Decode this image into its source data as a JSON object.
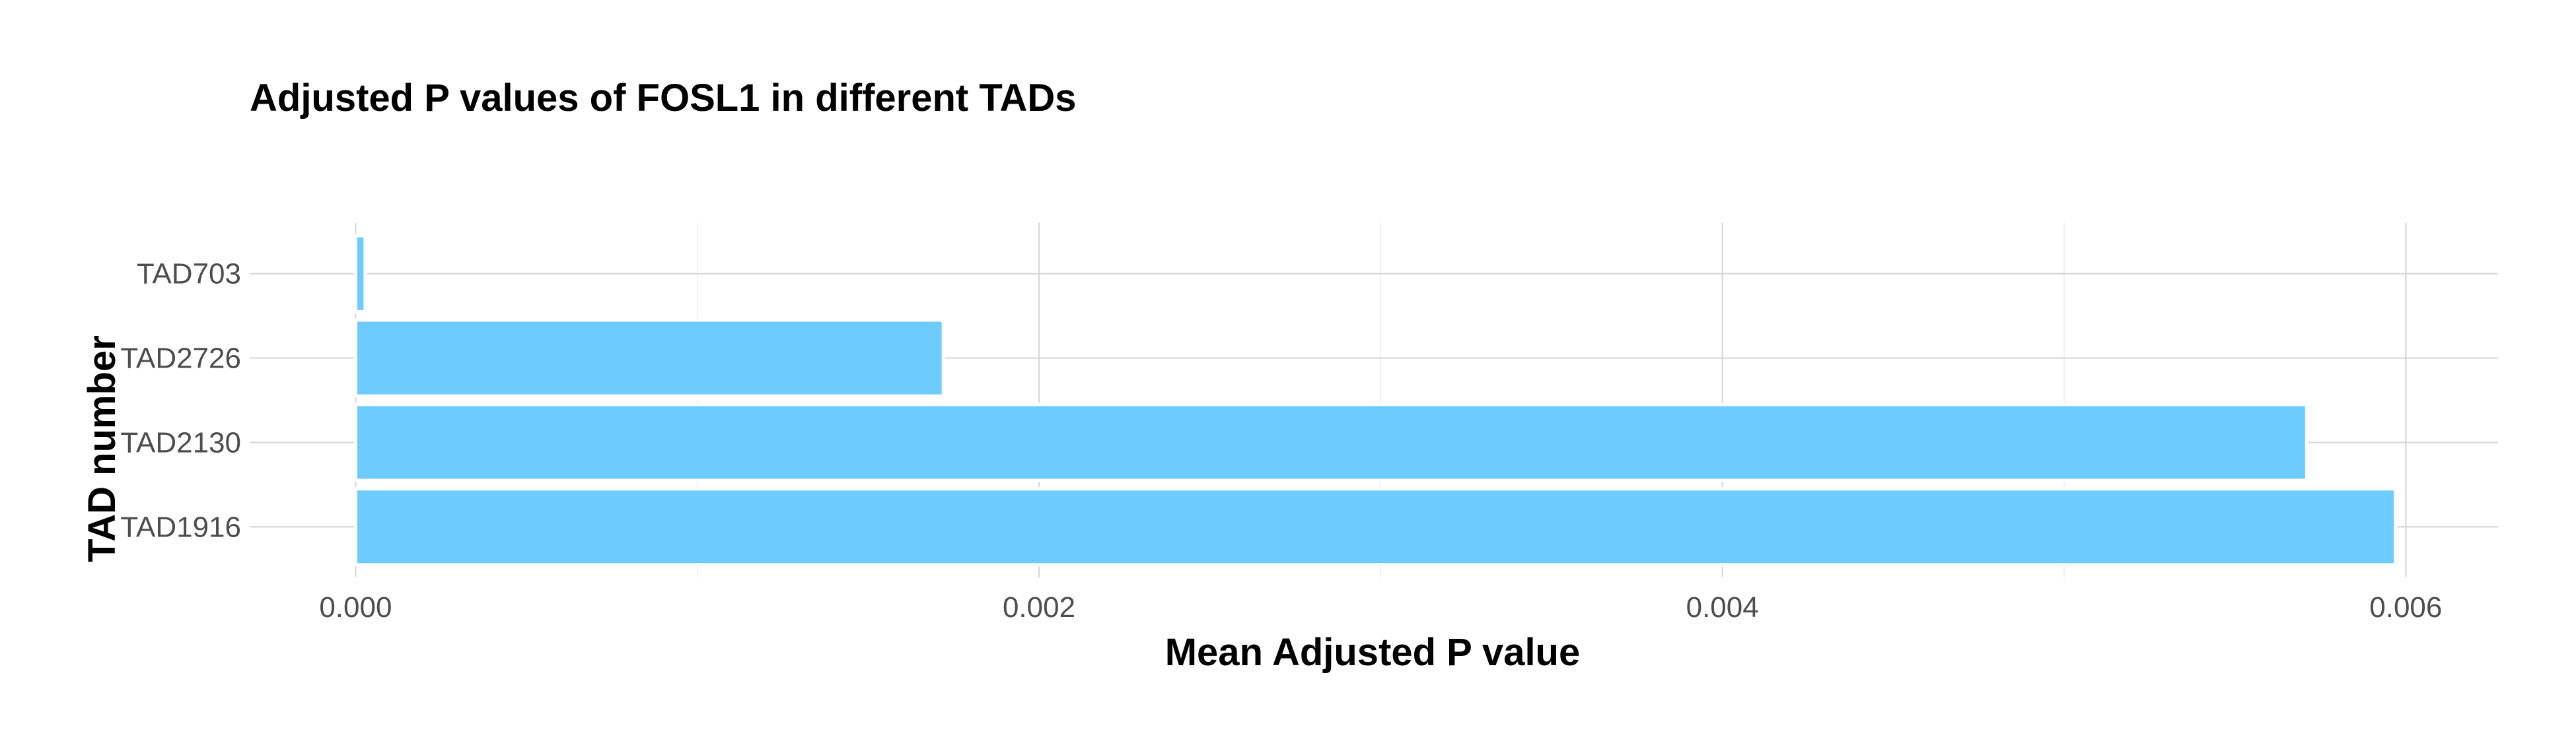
{
  "chart_data": {
    "type": "bar",
    "orientation": "horizontal",
    "title": "Adjusted P values of FOSL1 in different TADs",
    "xlabel": "Mean Adjusted P value",
    "ylabel": "TAD number",
    "categories": [
      "TAD703",
      "TAD2726",
      "TAD2130",
      "TAD1916"
    ],
    "values": [
      2.8e-05,
      0.00172,
      0.00571,
      0.00597
    ],
    "xlim": [
      -0.00031,
      0.00627
    ],
    "x_ticks": [
      0.0,
      0.002,
      0.004,
      0.006
    ],
    "x_tick_labels": [
      "0.000",
      "0.002",
      "0.004",
      "0.006"
    ],
    "grid": true,
    "legend": "none",
    "colors": {
      "bar_fill": "#6dcbfd",
      "bar_outline": "#ffffff"
    }
  }
}
